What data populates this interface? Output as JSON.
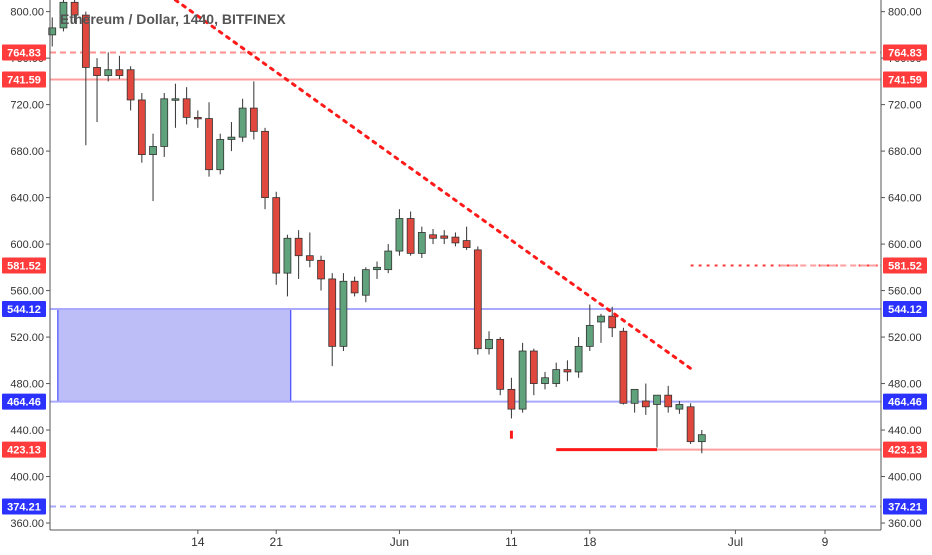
{
  "chart_data": {
    "type": "candlestick",
    "title": "Ethereum / Dollar, 1440, BITFINEX",
    "y_ticks": [
      "800.00",
      "760.00",
      "720.00",
      "680.00",
      "640.00",
      "600.00",
      "560.00",
      "520.00",
      "480.00",
      "440.00",
      "400.00",
      "360.00"
    ],
    "y_tick_values": [
      800,
      760,
      720,
      680,
      640,
      600,
      560,
      520,
      480,
      440,
      400,
      360
    ],
    "ylim": [
      354,
      810
    ],
    "x_ticks": [
      {
        "label": "14",
        "day": 14
      },
      {
        "label": "21",
        "day": 21
      },
      {
        "label": "Jun",
        "day": 32
      },
      {
        "label": "11",
        "day": 42
      },
      {
        "label": "18",
        "day": 49
      },
      {
        "label": "Jul",
        "day": 62
      },
      {
        "label": "9",
        "day": 70
      }
    ],
    "xlim": [
      0.8,
      75
    ],
    "candles": [
      {
        "day": 1,
        "open": 780,
        "high": 795,
        "low": 770,
        "close": 786
      },
      {
        "day": 2,
        "open": 786,
        "high": 810,
        "low": 783,
        "close": 808
      },
      {
        "day": 3,
        "open": 808,
        "high": 812,
        "low": 790,
        "close": 797
      },
      {
        "day": 4,
        "open": 797,
        "high": 800,
        "low": 685,
        "close": 752
      },
      {
        "day": 5,
        "open": 752,
        "high": 760,
        "low": 705,
        "close": 745
      },
      {
        "day": 6,
        "open": 745,
        "high": 765,
        "low": 740,
        "close": 750
      },
      {
        "day": 7,
        "open": 750,
        "high": 762,
        "low": 742,
        "close": 745
      },
      {
        "day": 8,
        "open": 750,
        "high": 753,
        "low": 715,
        "close": 724
      },
      {
        "day": 9,
        "open": 724,
        "high": 730,
        "low": 670,
        "close": 677
      },
      {
        "day": 10,
        "open": 677,
        "high": 695,
        "low": 637,
        "close": 684
      },
      {
        "day": 11,
        "open": 684,
        "high": 730,
        "low": 675,
        "close": 725
      },
      {
        "day": 12,
        "open": 725,
        "high": 738,
        "low": 700,
        "close": 725
      },
      {
        "day": 13,
        "open": 725,
        "high": 735,
        "low": 703,
        "close": 709
      },
      {
        "day": 14,
        "open": 709,
        "high": 715,
        "low": 700,
        "close": 708
      },
      {
        "day": 15,
        "open": 708,
        "high": 722,
        "low": 658,
        "close": 664
      },
      {
        "day": 16,
        "open": 664,
        "high": 695,
        "low": 660,
        "close": 690
      },
      {
        "day": 17,
        "open": 690,
        "high": 705,
        "low": 680,
        "close": 692
      },
      {
        "day": 18,
        "open": 692,
        "high": 725,
        "low": 688,
        "close": 717
      },
      {
        "day": 19,
        "open": 717,
        "high": 740,
        "low": 690,
        "close": 697
      },
      {
        "day": 20,
        "open": 697,
        "high": 700,
        "low": 630,
        "close": 640
      },
      {
        "day": 21,
        "open": 640,
        "high": 645,
        "low": 565,
        "close": 575
      },
      {
        "day": 22,
        "open": 575,
        "high": 608,
        "low": 555,
        "close": 605
      },
      {
        "day": 23,
        "open": 605,
        "high": 612,
        "low": 570,
        "close": 590
      },
      {
        "day": 24,
        "open": 590,
        "high": 610,
        "low": 580,
        "close": 586
      },
      {
        "day": 25,
        "open": 586,
        "high": 590,
        "low": 560,
        "close": 570
      },
      {
        "day": 26,
        "open": 570,
        "high": 575,
        "low": 495,
        "close": 512
      },
      {
        "day": 27,
        "open": 512,
        "high": 575,
        "low": 508,
        "close": 568
      },
      {
        "day": 28,
        "open": 568,
        "high": 572,
        "low": 555,
        "close": 558
      },
      {
        "day": 29,
        "open": 556,
        "high": 580,
        "low": 550,
        "close": 578
      },
      {
        "day": 30,
        "open": 578,
        "high": 585,
        "low": 570,
        "close": 580
      },
      {
        "day": 31,
        "open": 578,
        "high": 600,
        "low": 575,
        "close": 594
      },
      {
        "day": 32,
        "open": 594,
        "high": 630,
        "low": 590,
        "close": 622
      },
      {
        "day": 33,
        "open": 622,
        "high": 628,
        "low": 590,
        "close": 592
      },
      {
        "day": 34,
        "open": 592,
        "high": 615,
        "low": 588,
        "close": 610
      },
      {
        "day": 35,
        "open": 608,
        "high": 613,
        "low": 600,
        "close": 605
      },
      {
        "day": 36,
        "open": 607,
        "high": 612,
        "low": 600,
        "close": 605
      },
      {
        "day": 37,
        "open": 606,
        "high": 610,
        "low": 598,
        "close": 601
      },
      {
        "day": 38,
        "open": 603,
        "high": 615,
        "low": 595,
        "close": 597
      },
      {
        "day": 39,
        "open": 595,
        "high": 598,
        "low": 505,
        "close": 510
      },
      {
        "day": 40,
        "open": 510,
        "high": 525,
        "low": 505,
        "close": 518
      },
      {
        "day": 41,
        "open": 518,
        "high": 520,
        "low": 470,
        "close": 475
      },
      {
        "day": 42,
        "open": 475,
        "high": 485,
        "low": 450,
        "close": 458
      },
      {
        "day": 43,
        "open": 458,
        "high": 515,
        "low": 455,
        "close": 508
      },
      {
        "day": 44,
        "open": 508,
        "high": 510,
        "low": 470,
        "close": 480
      },
      {
        "day": 45,
        "open": 480,
        "high": 490,
        "low": 475,
        "close": 485
      },
      {
        "day": 46,
        "open": 480,
        "high": 498,
        "low": 477,
        "close": 492
      },
      {
        "day": 47,
        "open": 492,
        "high": 500,
        "low": 482,
        "close": 490
      },
      {
        "day": 48,
        "open": 490,
        "high": 520,
        "low": 485,
        "close": 512
      },
      {
        "day": 49,
        "open": 512,
        "high": 548,
        "low": 508,
        "close": 530
      },
      {
        "day": 50,
        "open": 533,
        "high": 540,
        "low": 515,
        "close": 538
      },
      {
        "day": 51,
        "open": 538,
        "high": 546,
        "low": 520,
        "close": 528
      },
      {
        "day": 52,
        "open": 525,
        "high": 528,
        "low": 462,
        "close": 463
      },
      {
        "day": 53,
        "open": 463,
        "high": 475,
        "low": 455,
        "close": 475
      },
      {
        "day": 54,
        "open": 465,
        "high": 480,
        "low": 453,
        "close": 460
      },
      {
        "day": 55,
        "open": 462,
        "high": 470,
        "low": 425,
        "close": 470
      },
      {
        "day": 56,
        "open": 470,
        "high": 478,
        "low": 455,
        "close": 460
      },
      {
        "day": 57,
        "open": 458,
        "high": 465,
        "low": 454,
        "close": 462
      },
      {
        "day": 58,
        "open": 460,
        "high": 463,
        "low": 428,
        "close": 430
      },
      {
        "day": 59,
        "open": 430,
        "high": 440,
        "low": 420,
        "close": 436
      }
    ],
    "price_lines": [
      {
        "value": 764.83,
        "label": "764.83",
        "color": "#ff9090",
        "style": "dashed",
        "tag_color": "#ff3b3b"
      },
      {
        "value": 741.59,
        "label": "741.59",
        "color": "#ff9e9e",
        "style": "solid",
        "tag_color": "#ff3b3b"
      },
      {
        "value": 581.52,
        "label": "581.52",
        "color": "#ff3b3b",
        "style": "dotted",
        "tag_color": "#ff3b3b",
        "day_start": 58
      },
      {
        "value": 544.12,
        "label": "544.12",
        "color": "#a9a9ff",
        "style": "solid",
        "tag_color": "#2b32ff"
      },
      {
        "value": 464.46,
        "label": "464.46",
        "color": "#a9a9ff",
        "style": "solid",
        "tag_color": "#2b32ff"
      },
      {
        "value": 423.13,
        "label": "423.13",
        "color": "#ff9e9e",
        "style": "solid",
        "tag_color": "#ff3b3b",
        "day_start": 55
      },
      {
        "value": 374.21,
        "label": "374.21",
        "color": "#a9a9ff",
        "style": "dashed",
        "tag_color": "#2b32ff"
      }
    ],
    "trendline": {
      "day_start": 12,
      "value_start": 810,
      "day_end": 58,
      "value_end": 493,
      "color": "#ff1a1a"
    },
    "zone": {
      "day_start": 1.5,
      "day_end": 22.3,
      "value_top": 544.12,
      "value_bottom": 464.46,
      "fill": "#bdbdf7",
      "stroke": "#2b32ff"
    },
    "segment": {
      "day_start": 46,
      "day_end": 55,
      "value": 423.13,
      "color": "#ff1a1a"
    },
    "marker": {
      "day": 42,
      "value": 436,
      "color": "#ff1a1a"
    },
    "colors": {
      "up": "#5fa27b",
      "down": "#e0483e",
      "axis": "#555555",
      "tag_text": "#ffffff"
    }
  }
}
